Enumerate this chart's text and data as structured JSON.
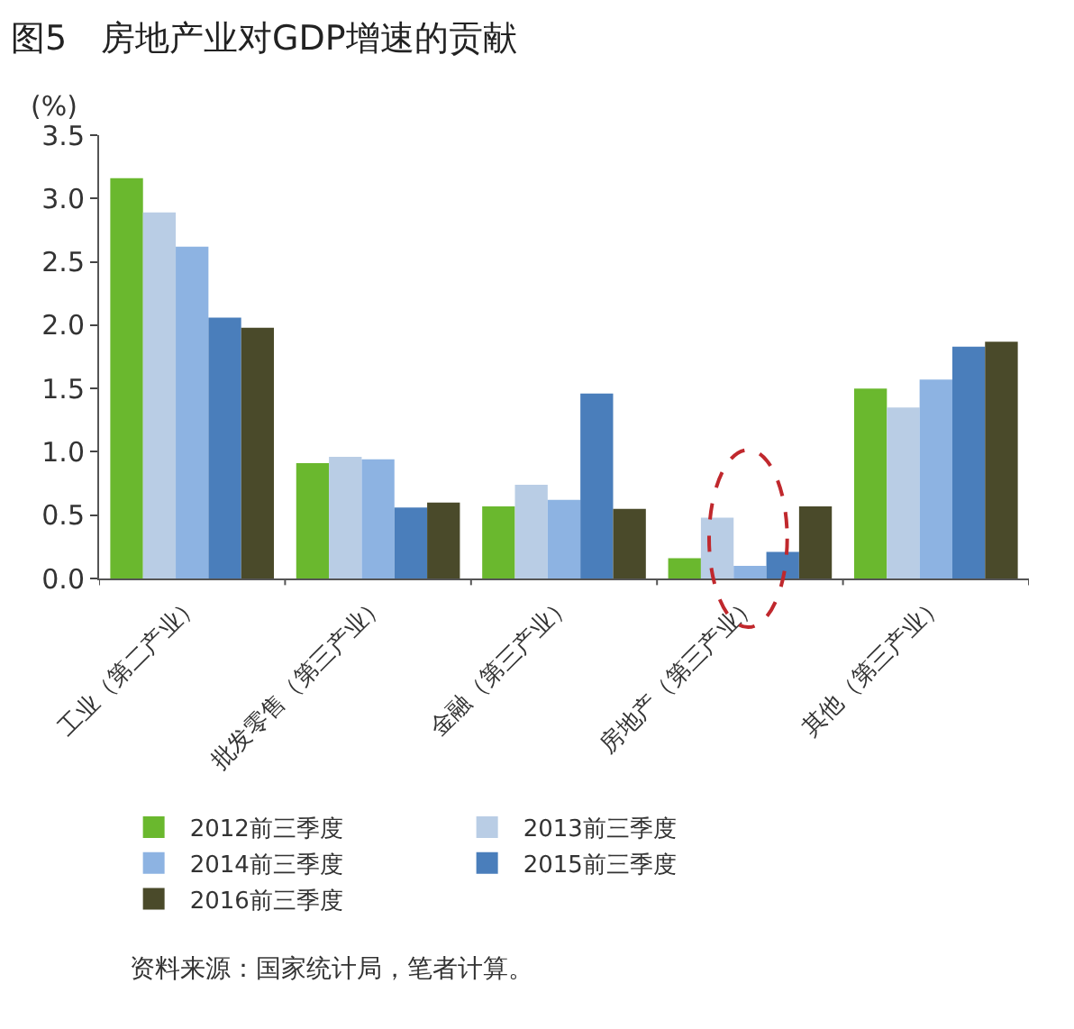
{
  "chart_data": {
    "type": "bar",
    "title": "图5　房地产业对GDP增速的贡献",
    "ylabel": "(%)",
    "categories": [
      "工业（第二产业）",
      "批发零售（第三产业）",
      "金融（第三产业）",
      "房地产（第三产业）",
      "其他（第三产业）"
    ],
    "series": [
      {
        "name": "2012前三季度",
        "color": "#6ab82e",
        "values": [
          3.16,
          0.91,
          0.57,
          0.16,
          1.5
        ]
      },
      {
        "name": "2013前三季度",
        "color": "#b9cde5",
        "values": [
          2.89,
          0.96,
          0.74,
          0.48,
          1.35
        ]
      },
      {
        "name": "2014前三季度",
        "color": "#8db3e2",
        "values": [
          2.62,
          0.94,
          0.62,
          0.1,
          1.57
        ]
      },
      {
        "name": "2015前三季度",
        "color": "#4a7ebb",
        "values": [
          2.06,
          0.56,
          1.46,
          0.21,
          1.83
        ]
      },
      {
        "name": "2016前三季度",
        "color": "#4a4a2a",
        "values": [
          1.98,
          0.6,
          0.55,
          0.57,
          1.87
        ]
      }
    ],
    "ylim": [
      0,
      3.5
    ],
    "yticks": [
      {
        "value": 0,
        "label": "0.0"
      },
      0.5,
      {
        "value": 1,
        "label": "1.0"
      },
      1.5,
      {
        "value": 2,
        "label": "2.0"
      },
      2.5,
      {
        "value": 3,
        "label": "3.0"
      },
      3.5
    ],
    "legend": "bottom",
    "annotations": [
      "资料来源：国家统计局，笔者计算。"
    ]
  }
}
